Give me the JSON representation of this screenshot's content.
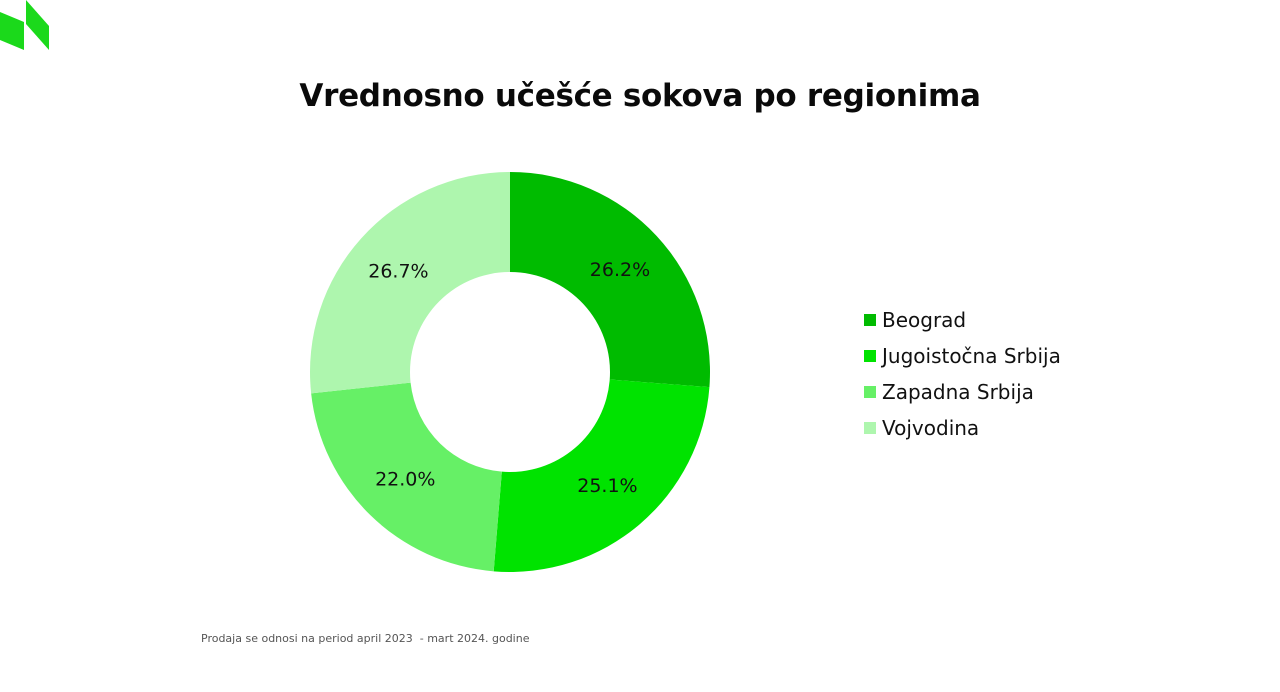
{
  "theme": {
    "logo_color": "#1bd91b",
    "text_color": "#111111"
  },
  "logo": {
    "icon": "brand-logo-icon"
  },
  "footnote": "Prodaja se odnosi na period april 2023  - mart 2024. godine",
  "chart_data": {
    "type": "pie",
    "variant": "donut",
    "title": "Vrednosno učešće sokova po regionima",
    "legend_position": "right",
    "start_angle_deg": 0,
    "direction": "clockwise",
    "slices": [
      {
        "name": "Beograd",
        "value": 26.2,
        "label": "26.2%",
        "color": "#00bb00"
      },
      {
        "name": "Jugoistočna Srbija",
        "value": 25.1,
        "label": "25.1%",
        "color": "#00e300"
      },
      {
        "name": "Zapadna Srbija",
        "value": 22.0,
        "label": "22.0%",
        "color": "#66f066"
      },
      {
        "name": "Vojvodina",
        "value": 26.7,
        "label": "26.7%",
        "color": "#aef6ae"
      }
    ]
  }
}
